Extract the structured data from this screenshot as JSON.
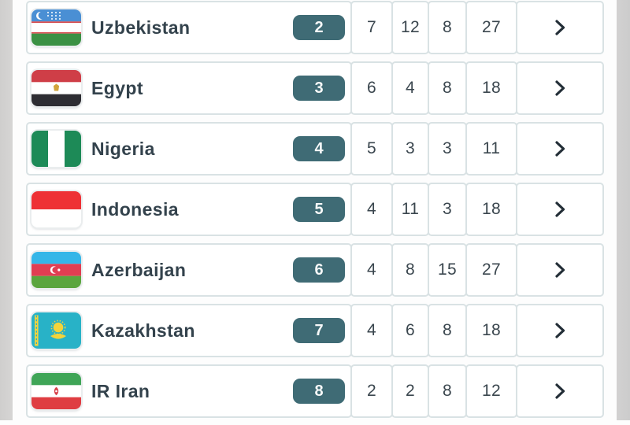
{
  "table": {
    "rows": [
      {
        "country": "Uzbekistan",
        "rank": "2",
        "gold": "7",
        "silver": "12",
        "bronze": "8",
        "total": "27",
        "flag_icon": "flag-uzbekistan-icon"
      },
      {
        "country": "Egypt",
        "rank": "3",
        "gold": "6",
        "silver": "4",
        "bronze": "8",
        "total": "18",
        "flag_icon": "flag-egypt-icon"
      },
      {
        "country": "Nigeria",
        "rank": "4",
        "gold": "5",
        "silver": "3",
        "bronze": "3",
        "total": "11",
        "flag_icon": "flag-nigeria-icon"
      },
      {
        "country": "Indonesia",
        "rank": "5",
        "gold": "4",
        "silver": "11",
        "bronze": "3",
        "total": "18",
        "flag_icon": "flag-indonesia-icon"
      },
      {
        "country": "Azerbaijan",
        "rank": "6",
        "gold": "4",
        "silver": "8",
        "bronze": "15",
        "total": "27",
        "flag_icon": "flag-azerbaijan-icon"
      },
      {
        "country": "Kazakhstan",
        "rank": "7",
        "gold": "4",
        "silver": "6",
        "bronze": "8",
        "total": "18",
        "flag_icon": "flag-kazakhstan-icon"
      },
      {
        "country": "IR Iran",
        "rank": "8",
        "gold": "2",
        "silver": "2",
        "bronze": "8",
        "total": "12",
        "flag_icon": "flag-iran-icon"
      }
    ],
    "chevron_icon": "chevron-right-icon"
  },
  "colors": {
    "rank_badge_bg": "#3f6b75",
    "rank_badge_text": "#f6f8f8",
    "cell_border": "#d9e2e4",
    "country_text": "#33424c",
    "number_text": "#3a464e",
    "chevron": "#232e37",
    "side_gutter": "#d1d0d0",
    "row_bg": "#ffffff"
  }
}
